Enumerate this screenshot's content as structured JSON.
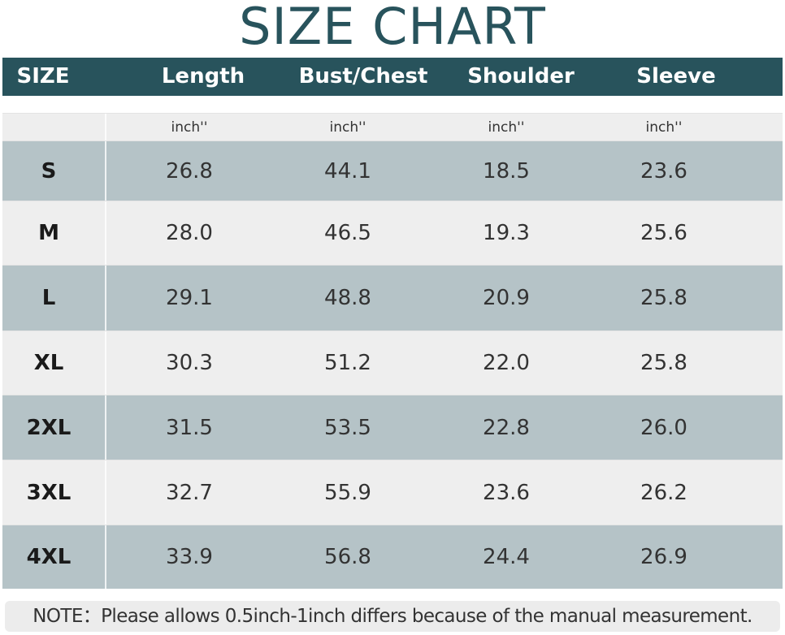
{
  "title": "SIZE CHART",
  "headers": [
    "SIZE",
    "Length",
    "Bust/Chest",
    "Shoulder",
    "Sleeve"
  ],
  "units": [
    "",
    "inch''",
    "inch''",
    "inch''",
    "inch''"
  ],
  "rows": [
    [
      "S",
      "26.8",
      "44.1",
      "18.5",
      "23.6"
    ],
    [
      "M",
      "28.0",
      "46.5",
      "19.3",
      "25.6"
    ],
    [
      "L",
      "29.1",
      "48.8",
      "20.9",
      "25.8"
    ],
    [
      "XL",
      "30.3",
      "51.2",
      "22.0",
      "25.8"
    ],
    [
      "2XL",
      "31.5",
      "53.5",
      "22.8",
      "26.0"
    ],
    [
      "3XL",
      "32.7",
      "55.9",
      "23.6",
      "26.2"
    ],
    [
      "4XL",
      "33.9",
      "56.8",
      "24.4",
      "26.9"
    ]
  ],
  "note": "NOTE：Please allows 0.5inch-1inch differs because of the manual measurement.",
  "colors": {
    "header": "#28535c",
    "row_dark": "#b5c3c7",
    "row_light": "#eeeeee"
  }
}
